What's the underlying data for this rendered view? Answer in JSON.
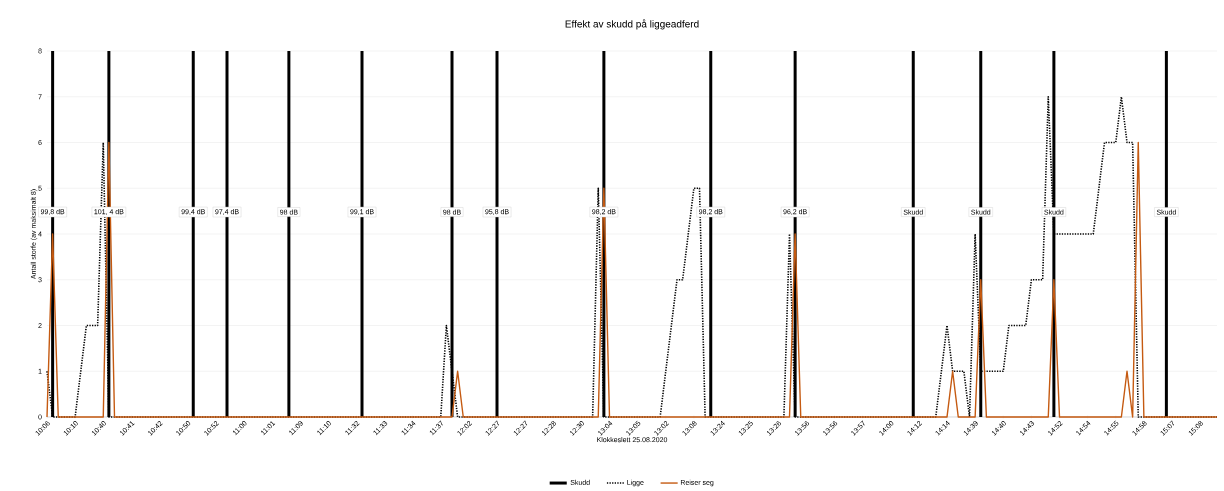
{
  "chart_data": {
    "type": "line",
    "title": "Effekt av skudd på liggeadferd",
    "xlabel": "Klokkeslett 25.08.2020",
    "ylabel": "Antall storfe (av maksimalt 8)",
    "categories": [
      "10:06",
      null,
      null,
      null,
      null,
      "10:10",
      null,
      null,
      null,
      null,
      "10:40",
      null,
      null,
      null,
      null,
      "10:41",
      null,
      null,
      null,
      null,
      "10:42",
      null,
      null,
      null,
      null,
      "10:50",
      null,
      null,
      null,
      null,
      "10:52",
      null,
      null,
      null,
      null,
      "11:00",
      null,
      null,
      null,
      null,
      "11:01",
      null,
      null,
      null,
      null,
      "11:09",
      null,
      null,
      null,
      null,
      "11:10",
      null,
      null,
      null,
      null,
      "11:32",
      null,
      null,
      null,
      null,
      "11:33",
      null,
      null,
      null,
      null,
      "11:34",
      null,
      null,
      null,
      null,
      "11:37",
      null,
      null,
      null,
      null,
      "12:02",
      null,
      null,
      null,
      null,
      "12:27",
      null,
      null,
      null,
      null,
      "12:27",
      null,
      null,
      null,
      null,
      "12:28",
      null,
      null,
      null,
      null,
      "12:30",
      null,
      null,
      null,
      null,
      "13:04",
      null,
      null,
      null,
      null,
      "13:05",
      null,
      null,
      null,
      null,
      "13:02",
      null,
      null,
      null,
      null,
      "13:08",
      null,
      null,
      null,
      null,
      "13:24",
      null,
      null,
      null,
      null,
      "13:25",
      null,
      null,
      null,
      null,
      "13:26",
      null,
      null,
      null,
      null,
      "13:56",
      null,
      null,
      null,
      null,
      "13:56",
      null,
      null,
      null,
      null,
      "13:57",
      null,
      null,
      null,
      null,
      "14:00",
      null,
      null,
      null,
      null,
      "14:12",
      null,
      null,
      null,
      null,
      "14:14",
      null,
      null,
      null,
      null,
      "14:39",
      null,
      null,
      null,
      null,
      "14:40",
      null,
      null,
      null,
      null,
      "14:43",
      null,
      null,
      null,
      null,
      "14:52",
      null,
      null,
      null,
      null,
      "14:54",
      null,
      null,
      null,
      null,
      "14:55",
      null,
      null,
      null,
      null,
      "14:58",
      null,
      null,
      null,
      null,
      "15:07",
      null,
      null,
      null,
      null,
      "15:08",
      null,
      null,
      null
    ],
    "ylim": [
      0,
      8
    ],
    "yticks": [
      0,
      1,
      2,
      3,
      4,
      5,
      6,
      7,
      8
    ],
    "grid": "y",
    "legend": "bottom",
    "marker": "none",
    "annotations": [
      "99,8 dB",
      "101, 4 dB",
      "99,4 dB",
      "97,4 dB",
      "98 dB",
      "99,1 dB",
      "98 dB",
      "95,8 dB",
      "98,2 dB",
      "98,2 dB",
      "96,2 dB",
      "Skudd",
      "Skudd",
      "Skudd",
      "Skudd"
    ],
    "series": [
      {
        "name": "Skudd",
        "type": "bar",
        "color": "#000000",
        "values": [
          null,
          8,
          null,
          null,
          null,
          null,
          null,
          null,
          null,
          null,
          null,
          8,
          null,
          null,
          null,
          null,
          null,
          null,
          null,
          null,
          null,
          null,
          null,
          null,
          null,
          null,
          8,
          null,
          null,
          null,
          null,
          null,
          8,
          null,
          null,
          null,
          null,
          null,
          null,
          null,
          null,
          null,
          null,
          8,
          null,
          null,
          null,
          null,
          null,
          null,
          null,
          null,
          null,
          null,
          null,
          null,
          8,
          null,
          null,
          null,
          null,
          null,
          null,
          null,
          null,
          null,
          null,
          null,
          null,
          null,
          null,
          null,
          8,
          null,
          null,
          null,
          null,
          null,
          null,
          null,
          8,
          null,
          null,
          null,
          null,
          null,
          null,
          null,
          null,
          null,
          null,
          null,
          null,
          null,
          null,
          null,
          null,
          null,
          null,
          8,
          null,
          null,
          null,
          null,
          null,
          null,
          null,
          null,
          null,
          null,
          null,
          null,
          null,
          null,
          null,
          null,
          null,
          null,
          8,
          null,
          null,
          null,
          null,
          null,
          null,
          null,
          null,
          null,
          null,
          null,
          null,
          null,
          null,
          8,
          null,
          null,
          null,
          null,
          null,
          null,
          null,
          null,
          null,
          null,
          null,
          null,
          null,
          null,
          null,
          null,
          null,
          null,
          null,
          null,
          8,
          null,
          null,
          null,
          null,
          null,
          null,
          null,
          null,
          null,
          null,
          null,
          8,
          null,
          null,
          null,
          null,
          null,
          null,
          null,
          null,
          null,
          null,
          null,
          null,
          8,
          null,
          null,
          null,
          null,
          null,
          null,
          null,
          null,
          null,
          null,
          null,
          null,
          null,
          null,
          null,
          null,
          null,
          null,
          null,
          8,
          null,
          null,
          null,
          null,
          null,
          null,
          null,
          null,
          null
        ]
      },
      {
        "name": "Ligge",
        "color": "#000000",
        "line_style": "dotted",
        "values": [
          1,
          0,
          0,
          0,
          0,
          0,
          1,
          2,
          2,
          2,
          6,
          0,
          0,
          0,
          0,
          0,
          0,
          0,
          0,
          0,
          0,
          0,
          0,
          0,
          0,
          0,
          0,
          0,
          0,
          0,
          0,
          0,
          0,
          0,
          0,
          0,
          0,
          0,
          0,
          0,
          0,
          0,
          0,
          0,
          0,
          0,
          0,
          0,
          0,
          0,
          0,
          0,
          0,
          0,
          0,
          0,
          0,
          0,
          0,
          0,
          0,
          0,
          0,
          0,
          0,
          0,
          0,
          0,
          0,
          0,
          0,
          2,
          1,
          0,
          0,
          0,
          0,
          0,
          0,
          0,
          0,
          0,
          0,
          0,
          0,
          0,
          0,
          0,
          0,
          0,
          0,
          0,
          0,
          0,
          0,
          0,
          0,
          0,
          5,
          0,
          0,
          0,
          0,
          0,
          0,
          0,
          0,
          0,
          0,
          0,
          1,
          2,
          3,
          3,
          4,
          5,
          5,
          0,
          0,
          0,
          0,
          0,
          0,
          0,
          0,
          0,
          0,
          0,
          0,
          0,
          0,
          0,
          4,
          0,
          0,
          0,
          0,
          0,
          0,
          0,
          0,
          0,
          0,
          0,
          0,
          0,
          0,
          0,
          0,
          0,
          0,
          0,
          0,
          0,
          0,
          0,
          0,
          0,
          0,
          1,
          2,
          1,
          1,
          1,
          0,
          4,
          1,
          1,
          1,
          1,
          1,
          2,
          2,
          2,
          2,
          3,
          3,
          3,
          7,
          4,
          4,
          4,
          4,
          4,
          4,
          4,
          4,
          5,
          6,
          6,
          6,
          7,
          6,
          6,
          0,
          0,
          0,
          0,
          0,
          0,
          0,
          0,
          0,
          0,
          0,
          0,
          0,
          0,
          0
        ]
      },
      {
        "name": "Reiser seg",
        "color": "#c55a11",
        "line_style": "solid",
        "values": [
          0,
          4,
          0,
          0,
          0,
          0,
          0,
          0,
          0,
          0,
          0,
          6,
          0,
          0,
          0,
          0,
          0,
          0,
          0,
          0,
          0,
          0,
          0,
          0,
          0,
          0,
          0,
          0,
          0,
          0,
          0,
          0,
          0,
          0,
          0,
          0,
          0,
          0,
          0,
          0,
          0,
          0,
          0,
          0,
          0,
          0,
          0,
          0,
          0,
          0,
          0,
          0,
          0,
          0,
          0,
          0,
          0,
          0,
          0,
          0,
          0,
          0,
          0,
          0,
          0,
          0,
          0,
          0,
          0,
          0,
          0,
          0,
          0,
          1,
          0,
          0,
          0,
          0,
          0,
          0,
          0,
          0,
          0,
          0,
          0,
          0,
          0,
          0,
          0,
          0,
          0,
          0,
          0,
          0,
          0,
          0,
          0,
          0,
          0,
          5,
          0,
          0,
          0,
          0,
          0,
          0,
          0,
          0,
          0,
          0,
          0,
          0,
          0,
          0,
          0,
          0,
          0,
          0,
          0,
          0,
          0,
          0,
          0,
          0,
          0,
          0,
          0,
          0,
          0,
          0,
          0,
          0,
          0,
          4,
          0,
          0,
          0,
          0,
          0,
          0,
          0,
          0,
          0,
          0,
          0,
          0,
          0,
          0,
          0,
          0,
          0,
          0,
          0,
          0,
          0,
          0,
          0,
          0,
          0,
          0,
          0,
          1,
          0,
          0,
          0,
          0,
          3,
          0,
          0,
          0,
          0,
          0,
          0,
          0,
          0,
          0,
          0,
          0,
          0,
          3,
          0,
          0,
          0,
          0,
          0,
          0,
          0,
          0,
          0,
          0,
          0,
          0,
          1,
          0,
          6,
          0,
          0,
          0,
          0,
          0,
          0,
          0,
          0,
          0,
          0,
          0,
          0,
          0,
          0
        ]
      }
    ]
  }
}
